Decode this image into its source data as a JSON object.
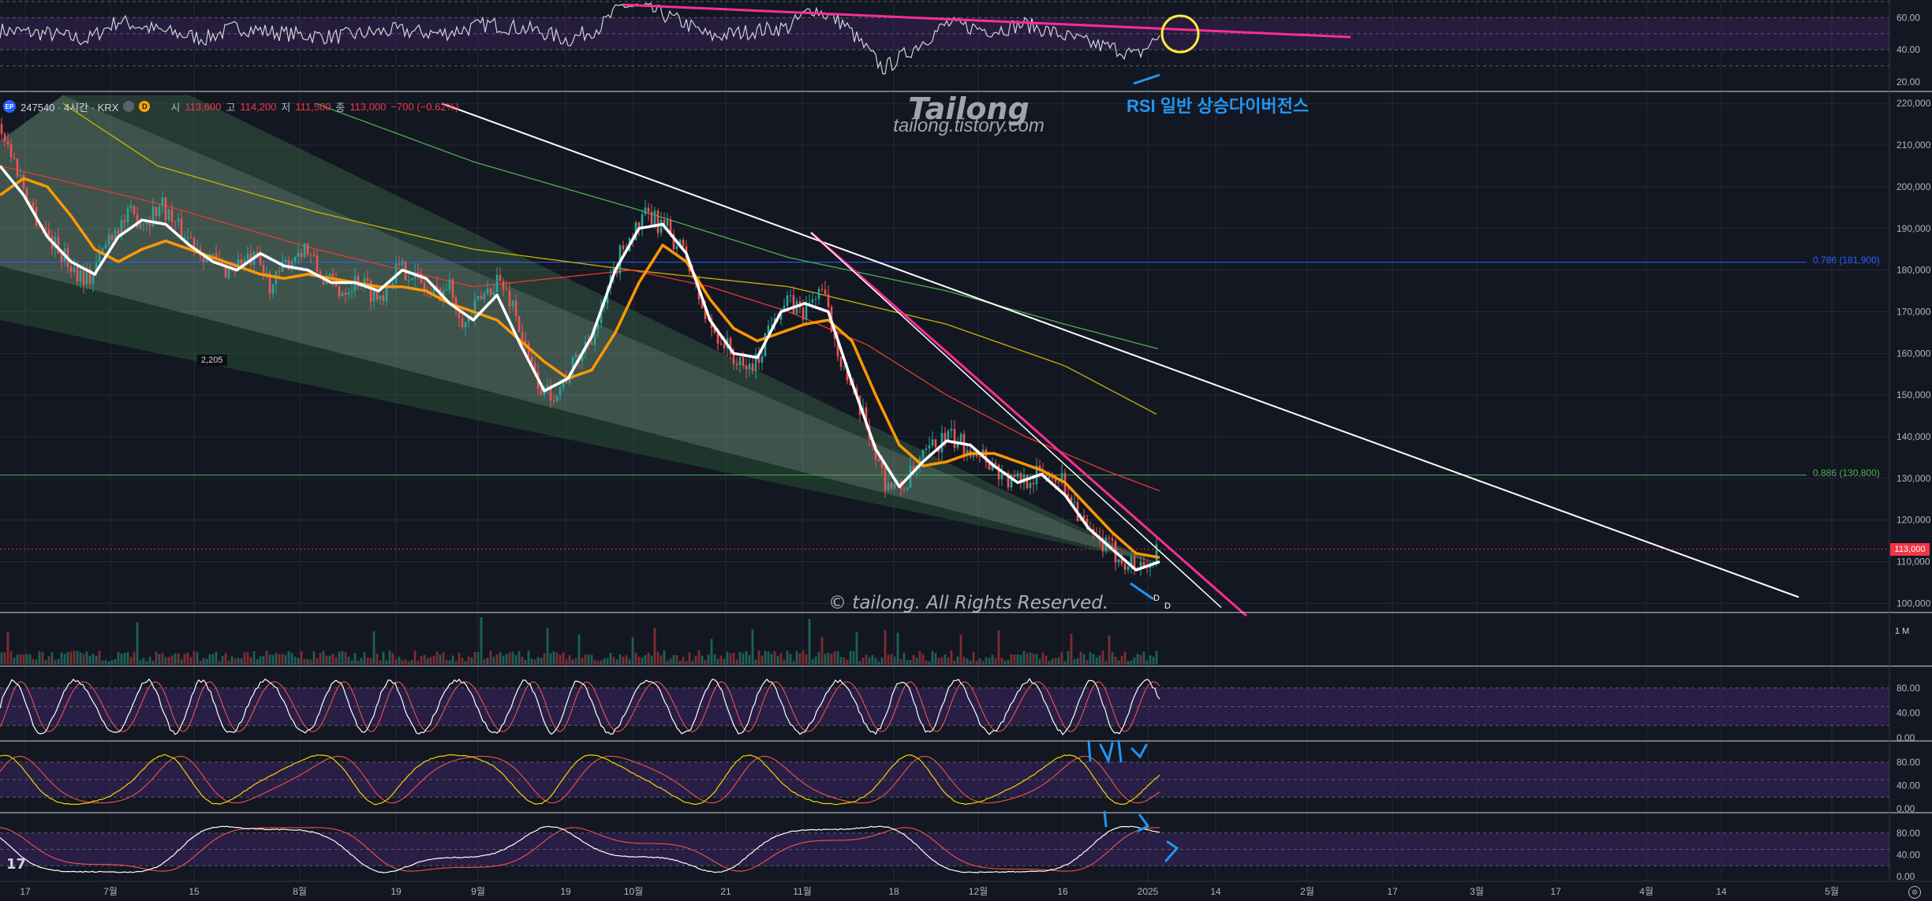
{
  "legend": {
    "symbol": "247540 · 4시간 · KRX",
    "d_badge": "D",
    "open_label": "시",
    "open_value": "113,600",
    "high_label": "고",
    "high_value": "114,200",
    "low_label": "저",
    "low_value": "111,500",
    "close_label": "종",
    "close_value": "113,000",
    "change": "−700 (−0.62%)"
  },
  "watermark": {
    "title": "Tailong",
    "url": "tailong.tistory.com"
  },
  "copyright": "© tailong. All Rights Reserved.",
  "annotation": {
    "rsi_note": "RSI 일반 상승다이버전스",
    "divergence_marks": [
      "D",
      "D"
    ]
  },
  "tradingview_logo": "17",
  "volume_axis_label": "1 M",
  "last_price_tag": "113,000",
  "swing_label": "2,205",
  "fib_levels": [
    {
      "label": "0.786 (181,900)",
      "price": 181900,
      "color": "#2962ff"
    },
    {
      "label": "0.886 (130,800)",
      "price": 130800,
      "color": "#4caf50"
    }
  ],
  "colors": {
    "background": "#131722",
    "candle_up": "#26a69a",
    "candle_down": "#ef5350",
    "ma_white": "#ffffff",
    "ma_orange": "#ff9800",
    "trendline_pink": "#ff2d95",
    "annotation_blue": "#2196f3",
    "highlight_circle": "#ffeb3b",
    "oscillator_band": "#3d2462"
  },
  "chart_data": [
    {
      "type": "candlestick",
      "name": "price",
      "y_axis_ticks": [
        220000,
        210000,
        200000,
        190000,
        180000,
        170000,
        160000,
        150000,
        140000,
        130000,
        120000,
        110000,
        100000
      ],
      "y_axis_labels": [
        "220,000",
        "210,000",
        "200,000",
        "190,000",
        "180,000",
        "170,000",
        "160,000",
        "150,000",
        "140,000",
        "130,000",
        "120,000",
        "110,000",
        "100,000"
      ],
      "ylim": [
        98000,
        222500
      ],
      "x_axis_labels": [
        "17",
        "7월",
        "15",
        "8월",
        "19",
        "9월",
        "19",
        "10월",
        "21",
        "11월",
        "18",
        "12월",
        "16",
        "2025",
        "14",
        "2월",
        "17",
        "3월",
        "17",
        "4월",
        "14",
        "5월"
      ],
      "close_path_keys": [
        [
          0,
          215000
        ],
        [
          20,
          205000
        ],
        [
          45,
          193000
        ],
        [
          70,
          186000
        ],
        [
          95,
          180000
        ],
        [
          115,
          178000
        ],
        [
          140,
          189000
        ],
        [
          165,
          193000
        ],
        [
          185,
          192000
        ],
        [
          205,
          196000
        ],
        [
          225,
          190000
        ],
        [
          245,
          187000
        ],
        [
          265,
          183000
        ],
        [
          285,
          180000
        ],
        [
          305,
          182000
        ],
        [
          325,
          182000
        ],
        [
          345,
          176000
        ],
        [
          365,
          182000
        ],
        [
          385,
          186000
        ],
        [
          405,
          179000
        ],
        [
          430,
          175000
        ],
        [
          455,
          178000
        ],
        [
          480,
          173000
        ],
        [
          500,
          180000
        ],
        [
          520,
          180000
        ],
        [
          545,
          174000
        ],
        [
          570,
          176000
        ],
        [
          590,
          167000
        ],
        [
          610,
          173000
        ],
        [
          630,
          178000
        ],
        [
          650,
          172000
        ],
        [
          670,
          158000
        ],
        [
          690,
          150000
        ],
        [
          710,
          152000
        ],
        [
          730,
          158000
        ],
        [
          760,
          168000
        ],
        [
          790,
          186000
        ],
        [
          820,
          193000
        ],
        [
          845,
          190000
        ],
        [
          870,
          183000
        ],
        [
          895,
          168000
        ],
        [
          920,
          162000
        ],
        [
          940,
          156000
        ],
        [
          960,
          158000
        ],
        [
          980,
          170000
        ],
        [
          1000,
          172000
        ],
        [
          1020,
          170000
        ],
        [
          1040,
          176000
        ],
        [
          1060,
          163000
        ],
        [
          1080,
          150000
        ],
        [
          1100,
          142000
        ],
        [
          1120,
          130000
        ],
        [
          1140,
          127000
        ],
        [
          1160,
          132000
        ],
        [
          1180,
          137000
        ],
        [
          1200,
          140000
        ],
        [
          1220,
          138000
        ],
        [
          1240,
          137000
        ],
        [
          1260,
          133000
        ],
        [
          1280,
          129000
        ],
        [
          1300,
          130000
        ],
        [
          1320,
          131000
        ],
        [
          1340,
          131000
        ],
        [
          1360,
          125000
        ],
        [
          1380,
          116000
        ],
        [
          1400,
          114000
        ],
        [
          1420,
          111000
        ],
        [
          1440,
          109000
        ],
        [
          1460,
          110000
        ],
        [
          1470,
          113000
        ]
      ],
      "moving_averages": [
        {
          "name": "ma_white",
          "color": "#ffffff",
          "keys": [
            [
              0,
              205000
            ],
            [
              30,
              198000
            ],
            [
              60,
              188000
            ],
            [
              90,
              182000
            ],
            [
              120,
              179000
            ],
            [
              150,
              188000
            ],
            [
              180,
              192000
            ],
            [
              210,
              191000
            ],
            [
              240,
              186000
            ],
            [
              270,
              182000
            ],
            [
              300,
              180000
            ],
            [
              330,
              184000
            ],
            [
              360,
              181000
            ],
            [
              390,
              180000
            ],
            [
              420,
              177000
            ],
            [
              450,
              177000
            ],
            [
              480,
              175000
            ],
            [
              510,
              180000
            ],
            [
              540,
              178000
            ],
            [
              570,
              172000
            ],
            [
              600,
              168000
            ],
            [
              630,
              174000
            ],
            [
              660,
              162000
            ],
            [
              690,
              151000
            ],
            [
              720,
              154000
            ],
            [
              750,
              164000
            ],
            [
              780,
              180000
            ],
            [
              810,
              190000
            ],
            [
              840,
              191000
            ],
            [
              870,
              184000
            ],
            [
              900,
              168000
            ],
            [
              930,
              160000
            ],
            [
              960,
              159000
            ],
            [
              990,
              170000
            ],
            [
              1020,
              172000
            ],
            [
              1050,
              170000
            ],
            [
              1080,
              153000
            ],
            [
              1110,
              137000
            ],
            [
              1140,
              128000
            ],
            [
              1170,
              134000
            ],
            [
              1200,
              139000
            ],
            [
              1230,
              138000
            ],
            [
              1260,
              133000
            ],
            [
              1290,
              129000
            ],
            [
              1320,
              131000
            ],
            [
              1350,
              126000
            ],
            [
              1380,
              118000
            ],
            [
              1410,
              113000
            ],
            [
              1440,
              108000
            ],
            [
              1470,
              110000
            ]
          ]
        },
        {
          "name": "ma_orange",
          "color": "#ff9800",
          "keys": [
            [
              0,
              198000
            ],
            [
              30,
              202000
            ],
            [
              60,
              200000
            ],
            [
              90,
              193000
            ],
            [
              120,
              185000
            ],
            [
              150,
              182000
            ],
            [
              180,
              185000
            ],
            [
              210,
              187000
            ],
            [
              240,
              185000
            ],
            [
              270,
              183000
            ],
            [
              300,
              181000
            ],
            [
              330,
              179000
            ],
            [
              360,
              178000
            ],
            [
              390,
              179000
            ],
            [
              420,
              178000
            ],
            [
              450,
              177000
            ],
            [
              480,
              176000
            ],
            [
              510,
              176000
            ],
            [
              540,
              175000
            ],
            [
              570,
              172000
            ],
            [
              600,
              170000
            ],
            [
              630,
              168000
            ],
            [
              660,
              163000
            ],
            [
              690,
              158000
            ],
            [
              720,
              154000
            ],
            [
              750,
              156000
            ],
            [
              780,
              165000
            ],
            [
              810,
              177000
            ],
            [
              840,
              186000
            ],
            [
              870,
              182000
            ],
            [
              900,
              173000
            ],
            [
              930,
              166000
            ],
            [
              960,
              163000
            ],
            [
              990,
              165000
            ],
            [
              1020,
              167000
            ],
            [
              1050,
              168000
            ],
            [
              1080,
              163000
            ],
            [
              1110,
              150000
            ],
            [
              1140,
              138000
            ],
            [
              1170,
              133000
            ],
            [
              1200,
              134000
            ],
            [
              1230,
              136000
            ],
            [
              1260,
              136000
            ],
            [
              1290,
              134000
            ],
            [
              1320,
              132000
            ],
            [
              1350,
              129000
            ],
            [
              1380,
              123000
            ],
            [
              1410,
              117000
            ],
            [
              1440,
              112000
            ],
            [
              1470,
              111000
            ]
          ]
        },
        {
          "name": "ma_red",
          "color": "#e53935",
          "keys": [
            [
              0,
              205000
            ],
            [
              200,
              196000
            ],
            [
              400,
              185000
            ],
            [
              600,
              176000
            ],
            [
              800,
              180000
            ],
            [
              900,
              176000
            ],
            [
              1000,
              170000
            ],
            [
              1100,
              162000
            ],
            [
              1200,
              150000
            ],
            [
              1300,
              140000
            ],
            [
              1400,
              132000
            ],
            [
              1470,
              127000
            ]
          ]
        },
        {
          "name": "ma_yellow",
          "color": "#c9b400",
          "keys": [
            [
              80,
              220000
            ],
            [
              200,
              205000
            ],
            [
              400,
              194000
            ],
            [
              600,
              185000
            ],
            [
              800,
              180000
            ],
            [
              1000,
              176000
            ],
            [
              1200,
              167000
            ],
            [
              1350,
              157000
            ],
            [
              1470,
              145000
            ]
          ]
        },
        {
          "name": "ma_green",
          "color": "#4caf50",
          "keys": [
            [
              400,
              220000
            ],
            [
              600,
              206000
            ],
            [
              800,
              195000
            ],
            [
              1000,
              183000
            ],
            [
              1200,
              175000
            ],
            [
              1350,
              167000
            ],
            [
              1470,
              161000
            ]
          ]
        }
      ],
      "trendlines": [
        {
          "name": "white-trendline",
          "color": "#ffffff",
          "from": [
            560,
            220000
          ],
          "to": [
            2280,
            101500
          ]
        },
        {
          "name": "pink-trendline",
          "color": "#ff2d95",
          "from": [
            1028,
            189000
          ],
          "to": [
            1580,
            97000
          ]
        }
      ]
    },
    {
      "type": "line",
      "name": "rsi",
      "y_axis_labels": [
        "60.00",
        "40.00",
        "20.00"
      ],
      "ylim": [
        15,
        70
      ]
    },
    {
      "type": "bar",
      "name": "volume",
      "y_axis_labels": [
        "1 M"
      ]
    },
    {
      "type": "line",
      "name": "stochastic_1",
      "y_axis_labels": [
        "80.00",
        "40.00",
        "0.00"
      ],
      "ylim": [
        0,
        100
      ]
    },
    {
      "type": "line",
      "name": "stochastic_2",
      "y_axis_labels": [
        "80.00",
        "40.00",
        "0.00"
      ],
      "ylim": [
        0,
        100
      ]
    },
    {
      "type": "line",
      "name": "stochastic_3",
      "y_axis_labels": [
        "80.00",
        "40.00",
        "0.00"
      ],
      "ylim": [
        0,
        100
      ]
    }
  ]
}
